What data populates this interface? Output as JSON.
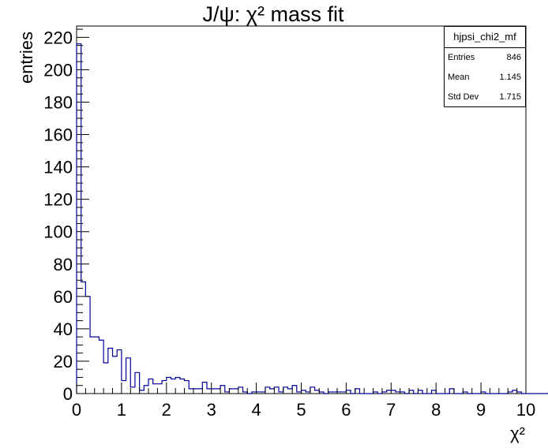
{
  "chart_data": {
    "type": "histogram",
    "title": "J/ψ: χ² mass fit",
    "xlabel": "χ²",
    "ylabel": "entries",
    "xlim": [
      0,
      10
    ],
    "ylim": [
      0,
      227
    ],
    "x_ticks": [
      "0",
      "1",
      "2",
      "3",
      "4",
      "5",
      "6",
      "7",
      "8",
      "9",
      "10"
    ],
    "y_ticks": [
      "0",
      "20",
      "40",
      "60",
      "80",
      "100",
      "120",
      "140",
      "160",
      "180",
      "200",
      "220"
    ],
    "bin_width": 0.1,
    "line_color": "#000099",
    "values": [
      216,
      69,
      60,
      35,
      35,
      33,
      19,
      28,
      23,
      27,
      8,
      22,
      4,
      13,
      2,
      5,
      9,
      6,
      6,
      8,
      10,
      9,
      10,
      9,
      8,
      3,
      3,
      3,
      7,
      3,
      3,
      3,
      5,
      1,
      3,
      3,
      4,
      1,
      0,
      1,
      1,
      1,
      4,
      3,
      4,
      1,
      4,
      3,
      5,
      1,
      2,
      1,
      4,
      2,
      1,
      0,
      1,
      1,
      1,
      1,
      2,
      0,
      3,
      0,
      0,
      0,
      1,
      0,
      1,
      2,
      2,
      1,
      1,
      0,
      2,
      0,
      2,
      0,
      0,
      2,
      0,
      0,
      0,
      3,
      0,
      0,
      1,
      0,
      0,
      0,
      1,
      0,
      0,
      0,
      0,
      0,
      1,
      2,
      1,
      0,
      0,
      0,
      0,
      0,
      0,
      1,
      0,
      0,
      0,
      0,
      0,
      0,
      0,
      1,
      0,
      0,
      0,
      1,
      0,
      0
    ]
  },
  "stats": {
    "name": "hjpsi_chi2_mf",
    "rows": [
      {
        "label": "Entries",
        "value": "846"
      },
      {
        "label": "Mean",
        "value": "1.145"
      },
      {
        "label": "Std Dev",
        "value": "1.715"
      }
    ]
  }
}
